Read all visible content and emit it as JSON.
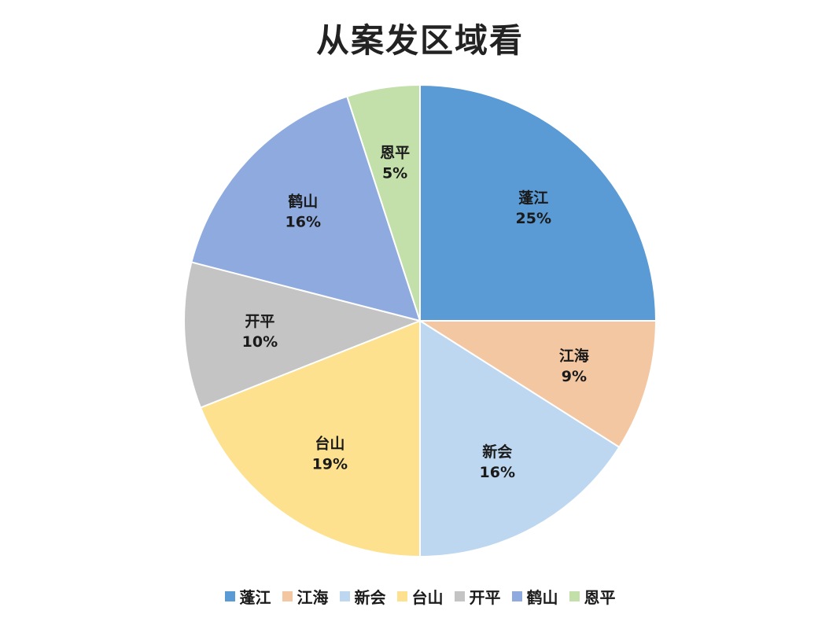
{
  "chart_data": {
    "type": "pie",
    "title": "从案发区域看",
    "categories": [
      "蓬江",
      "江海",
      "新会",
      "台山",
      "开平",
      "鹤山",
      "恩平"
    ],
    "values": [
      25,
      9,
      16,
      19,
      10,
      16,
      5
    ],
    "value_labels": [
      "25%",
      "9%",
      "16%",
      "19%",
      "10%",
      "16%",
      "5%"
    ],
    "colors": [
      "#5b9bd5",
      "#f4c7a3",
      "#bdd7f1",
      "#fde18e",
      "#c4c4c4",
      "#8eaadf",
      "#c3dfaa"
    ],
    "start_angle": "12 o'clock",
    "direction": "clockwise",
    "legend_position": "bottom"
  }
}
